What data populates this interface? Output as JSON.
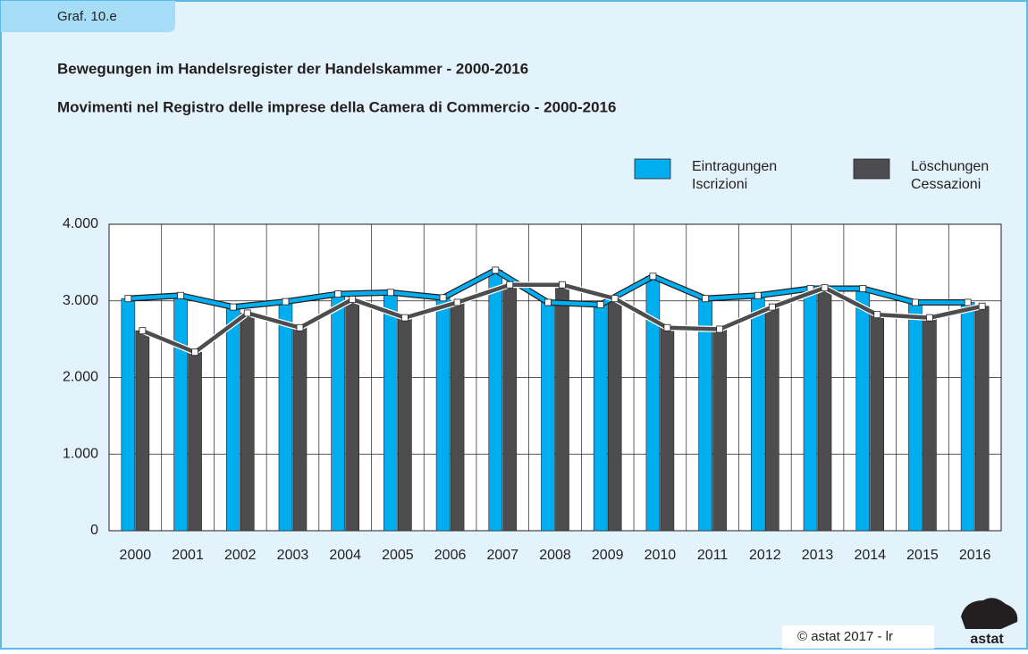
{
  "header": {
    "tab": "Graf. 10.e"
  },
  "chart_data": {
    "type": "bar_line",
    "title": "Bewegungen im Handelsregister der Handelskammer - 2000-2016",
    "subtitle": "Movimenti nel Registro delle imprese della Camera di Commercio - 2000-2016",
    "categories": [
      "2000",
      "2001",
      "2002",
      "2003",
      "2004",
      "2005",
      "2006",
      "2007",
      "2008",
      "2009",
      "2010",
      "2011",
      "2012",
      "2013",
      "2014",
      "2015",
      "2016"
    ],
    "series": [
      {
        "name": "Eintragungen",
        "name_it": "Iscrizioni",
        "color": "#00aeef",
        "values": [
          3030,
          3070,
          2920,
          2990,
          3090,
          3110,
          3040,
          3400,
          2980,
          2950,
          3320,
          3030,
          3070,
          3160,
          3160,
          2980,
          2980
        ]
      },
      {
        "name": "Löschungen",
        "name_it": "Cessazioni",
        "color": "#4d4d4f",
        "values": [
          2610,
          2330,
          2840,
          2650,
          3020,
          2780,
          2980,
          3210,
          3210,
          3030,
          2650,
          2630,
          2920,
          3170,
          2820,
          2780,
          2930
        ]
      }
    ],
    "ylim": [
      0,
      4000
    ],
    "yticks": [
      0,
      {
        "value": 1000,
        "label": "1.000"
      },
      {
        "value": 2000,
        "label": "2.000"
      },
      {
        "value": 3000,
        "label": "3.000"
      },
      {
        "value": 4000,
        "label": "4.000"
      }
    ],
    "grid": true,
    "legend": "top-right"
  },
  "footer": {
    "credit": "© astat 2017 - lr",
    "logo": "astat"
  }
}
